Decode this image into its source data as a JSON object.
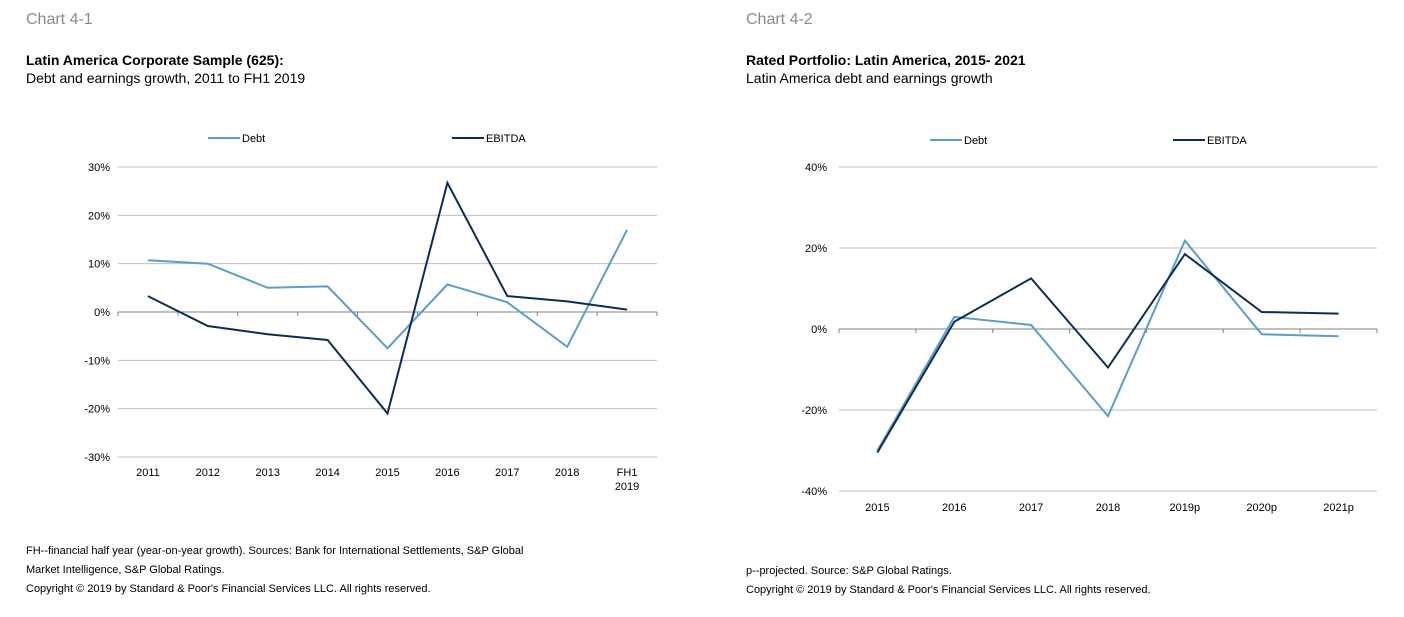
{
  "charts": [
    {
      "label": "Chart 4-1",
      "title": "Latin America Corporate Sample (625):",
      "subtitle": "Debt and earnings growth, 2011 to FH1 2019",
      "notes": [
        "FH--financial half year (year-on-year growth). Sources: Bank for International Settlements, S&P Global",
        "Market Intelligence, S&P Global Ratings.",
        "Copyright © 2019 by Standard & Poor's Financial Services LLC. All rights reserved."
      ]
    },
    {
      "label": "Chart 4-2",
      "title": "Rated Portfolio: Latin America, 2015- 2021",
      "subtitle": "Latin America debt and earnings growth",
      "notes": [
        "p--projected. Source: S&P Global Ratings.",
        "Copyright © 2019 by Standard & Poor's Financial Services LLC. All rights reserved."
      ]
    }
  ],
  "colors": {
    "debt": "#5a9ec9",
    "ebitda": "#0b2d57",
    "grid": "#bfbfbf",
    "axis": "#808080"
  },
  "chart_data": [
    {
      "type": "line",
      "categories": [
        "2011",
        "2012",
        "2013",
        "2014",
        "2015",
        "2016",
        "2017",
        "2018",
        "FH1\n2019"
      ],
      "series": [
        {
          "name": "Debt",
          "values": [
            10.7,
            10.0,
            5.0,
            5.3,
            -7.5,
            5.7,
            2.0,
            -7.2,
            17.0
          ]
        },
        {
          "name": "EBITDA",
          "values": [
            3.3,
            -2.9,
            -4.6,
            -5.8,
            -21.0,
            26.7,
            3.3,
            2.2,
            0.5
          ]
        }
      ],
      "yticks": [
        "30%",
        "20%",
        "10%",
        "0%",
        "-10%",
        "-20%",
        "-30%"
      ],
      "ylim": [
        -30,
        30
      ],
      "grid": true,
      "legend": "top"
    },
    {
      "type": "line",
      "categories": [
        "2015",
        "2016",
        "2017",
        "2018",
        "2019p",
        "2020p",
        "2021p"
      ],
      "series": [
        {
          "name": "Debt",
          "values": [
            -30.0,
            3.0,
            1.0,
            -21.5,
            21.8,
            -1.3,
            -1.8
          ]
        },
        {
          "name": "EBITDA",
          "values": [
            -30.5,
            1.8,
            12.5,
            -9.5,
            18.5,
            4.2,
            3.8
          ]
        }
      ],
      "yticks": [
        "40%",
        "20%",
        "0%",
        "-20%",
        "-40%"
      ],
      "ylim": [
        -40,
        40
      ],
      "grid": true,
      "legend": "top"
    }
  ]
}
